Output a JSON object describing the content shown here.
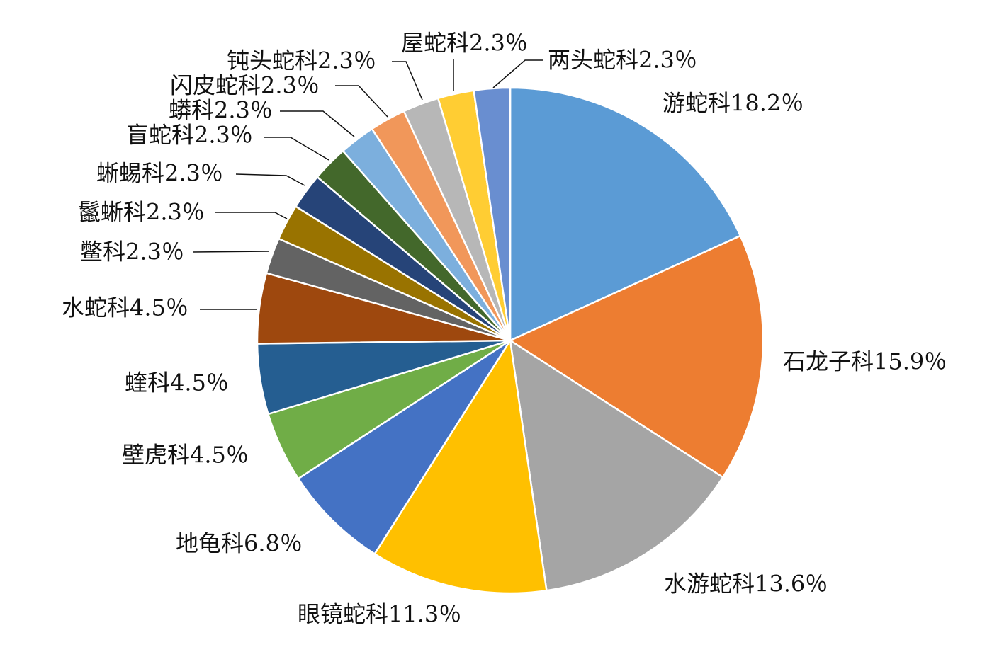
{
  "chart_data": {
    "type": "pie",
    "start_angle_deg": 0,
    "direction": "clockwise",
    "slices": [
      {
        "label": "游蛇科",
        "pct_text": "18.2％",
        "value": 18.2,
        "color": "#5b9bd5"
      },
      {
        "label": "石龙子科",
        "pct_text": "15.9％",
        "value": 15.9,
        "color": "#ed7d31"
      },
      {
        "label": "水游蛇科",
        "pct_text": "13.6％",
        "value": 13.6,
        "color": "#a5a5a5"
      },
      {
        "label": "眼镜蛇科",
        "pct_text": "11.3％",
        "value": 11.3,
        "color": "#ffc000"
      },
      {
        "label": "地龟科",
        "pct_text": "6.8％",
        "value": 6.8,
        "color": "#4472c4"
      },
      {
        "label": "壁虎科",
        "pct_text": "4.5％",
        "value": 4.5,
        "color": "#70ad47"
      },
      {
        "label": "蝰科",
        "pct_text": "4.5％",
        "value": 4.5,
        "color": "#255e91"
      },
      {
        "label": "水蛇科",
        "pct_text": "4.5％",
        "value": 4.5,
        "color": "#9e480e"
      },
      {
        "label": "鳖科",
        "pct_text": "2.3％",
        "value": 2.3,
        "color": "#636363"
      },
      {
        "label": "鬣蜥科",
        "pct_text": "2.3％",
        "value": 2.3,
        "color": "#997300"
      },
      {
        "label": "蜥蜴科",
        "pct_text": "2.3％",
        "value": 2.3,
        "color": "#264478"
      },
      {
        "label": "盲蛇科",
        "pct_text": "2.3％",
        "value": 2.3,
        "color": "#43682b"
      },
      {
        "label": "蟒科",
        "pct_text": "2.3％",
        "value": 2.3,
        "color": "#7cafdd"
      },
      {
        "label": "闪皮蛇科",
        "pct_text": "2.3％",
        "value": 2.3,
        "color": "#f1975a"
      },
      {
        "label": "钝头蛇科",
        "pct_text": "2.3％",
        "value": 2.3,
        "color": "#b7b7b7"
      },
      {
        "label": "屋蛇科",
        "pct_text": "2.3％",
        "value": 2.3,
        "color": "#ffcd33"
      },
      {
        "label": "两头蛇科",
        "pct_text": "2.3％",
        "value": 2.3,
        "color": "#698ed0"
      }
    ]
  }
}
